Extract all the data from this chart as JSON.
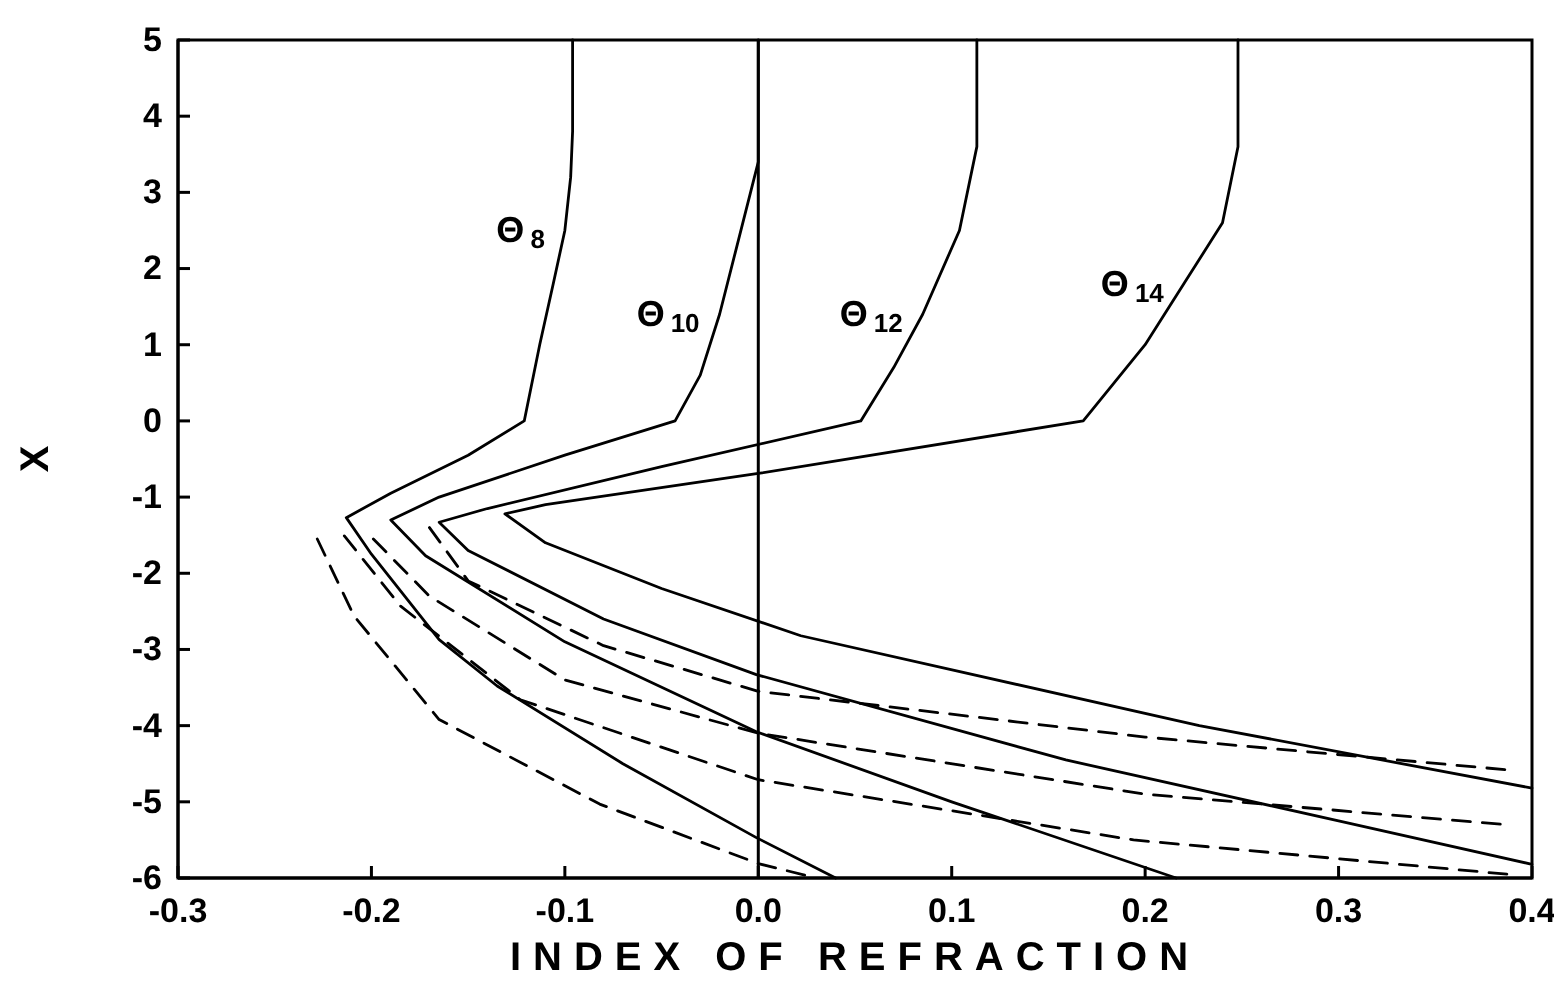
{
  "chart_data": {
    "type": "line",
    "xlabel": "INDEX OF REFRACTION",
    "ylabel": "X",
    "xlim": [
      -0.3,
      0.4
    ],
    "ylim": [
      -6,
      5
    ],
    "xticks": [
      -0.3,
      -0.2,
      -0.1,
      {
        "value": 0,
        "label": "0.0"
      },
      0.1,
      0.2,
      0.3,
      0.4
    ],
    "yticks": [
      -6,
      -5,
      -4,
      -3,
      -2,
      -1,
      0,
      1,
      2,
      3,
      4,
      5
    ],
    "grid": false,
    "marker": "none",
    "ref_lines": [
      {
        "axis": "x",
        "value": 0,
        "color": "#000000",
        "line_style": "solid"
      }
    ],
    "series": [
      {
        "name": "Θ$_{8}$",
        "color": "#000000",
        "line_style": "solid",
        "x": [
          -0.096,
          -0.096,
          -0.097,
          -0.1,
          -0.106,
          -0.113,
          -0.121,
          -0.15,
          -0.19,
          -0.213,
          -0.2,
          -0.165,
          -0.135,
          -0.07,
          -0.001,
          0.04
        ],
        "values": [
          5,
          3.8,
          3.2,
          2.5,
          1.8,
          1,
          0,
          -0.45,
          -0.95,
          -1.27,
          -1.75,
          -2.87,
          -3.48,
          -4.5,
          -5.47,
          -6
        ]
      },
      {
        "name": "Θ$_{10}$",
        "color": "#000000",
        "line_style": "solid",
        "x": [
          0,
          0,
          -0.012,
          -0.02,
          -0.03,
          -0.043,
          -0.1,
          -0.165,
          -0.19,
          -0.172,
          -0.1,
          -0.001,
          0.1,
          0.216
        ],
        "values": [
          5,
          3.4,
          2.2,
          1.4,
          0.6,
          0,
          -0.45,
          -1.0,
          -1.3,
          -1.77,
          -2.9,
          -4.08,
          -5.0,
          -6
        ]
      },
      {
        "name": "Θ$_{12}$",
        "color": "#000000",
        "line_style": "solid",
        "x": [
          0.113,
          0.113,
          0.104,
          0.085,
          0.07,
          0.053,
          -0.05,
          -0.14,
          -0.165,
          -0.15,
          -0.08,
          -0.001,
          0.159,
          0.3,
          0.4
        ],
        "values": [
          5,
          3.6,
          2.5,
          1.4,
          0.7,
          0,
          -0.6,
          -1.15,
          -1.33,
          -1.7,
          -2.6,
          -3.33,
          -4.45,
          -5.25,
          -5.82
        ]
      },
      {
        "name": "Θ$_{14}$",
        "color": "#000000",
        "line_style": "solid",
        "x": [
          0.248,
          0.248,
          0.24,
          0.22,
          0.2,
          0.168,
          0.0,
          -0.11,
          -0.131,
          -0.11,
          -0.05,
          0.022,
          0.228,
          0.4
        ],
        "values": [
          5,
          3.6,
          2.6,
          1.8,
          1.0,
          0,
          -0.69,
          -1.1,
          -1.22,
          -1.6,
          -2.2,
          -2.82,
          -4.0,
          -4.82
        ]
      },
      {
        "color": "#000000",
        "line_style": "dashed",
        "x": [
          -0.228,
          -0.209,
          -0.165,
          -0.082,
          0,
          0.03
        ],
        "values": [
          -1.55,
          -2.56,
          -3.92,
          -5.03,
          -5.81,
          -6
        ]
      },
      {
        "color": "#000000",
        "line_style": "dashed",
        "x": [
          -0.214,
          -0.185,
          -0.123,
          0,
          0.194,
          0.387
        ],
        "values": [
          -1.51,
          -2.43,
          -3.66,
          -4.71,
          -5.5,
          -5.95
        ]
      },
      {
        "color": "#000000",
        "line_style": "dashed",
        "x": [
          -0.199,
          -0.17,
          -0.1,
          0,
          0.2,
          0.387
        ],
        "values": [
          -1.55,
          -2.3,
          -3.4,
          -4.1,
          -4.9,
          -5.3
        ]
      },
      {
        "color": "#000000",
        "line_style": "dashed",
        "x": [
          -0.17,
          -0.15,
          -0.08,
          0,
          0.2,
          0.387
        ],
        "values": [
          -1.4,
          -2.1,
          -2.95,
          -3.55,
          -4.15,
          -4.58
        ]
      }
    ]
  }
}
